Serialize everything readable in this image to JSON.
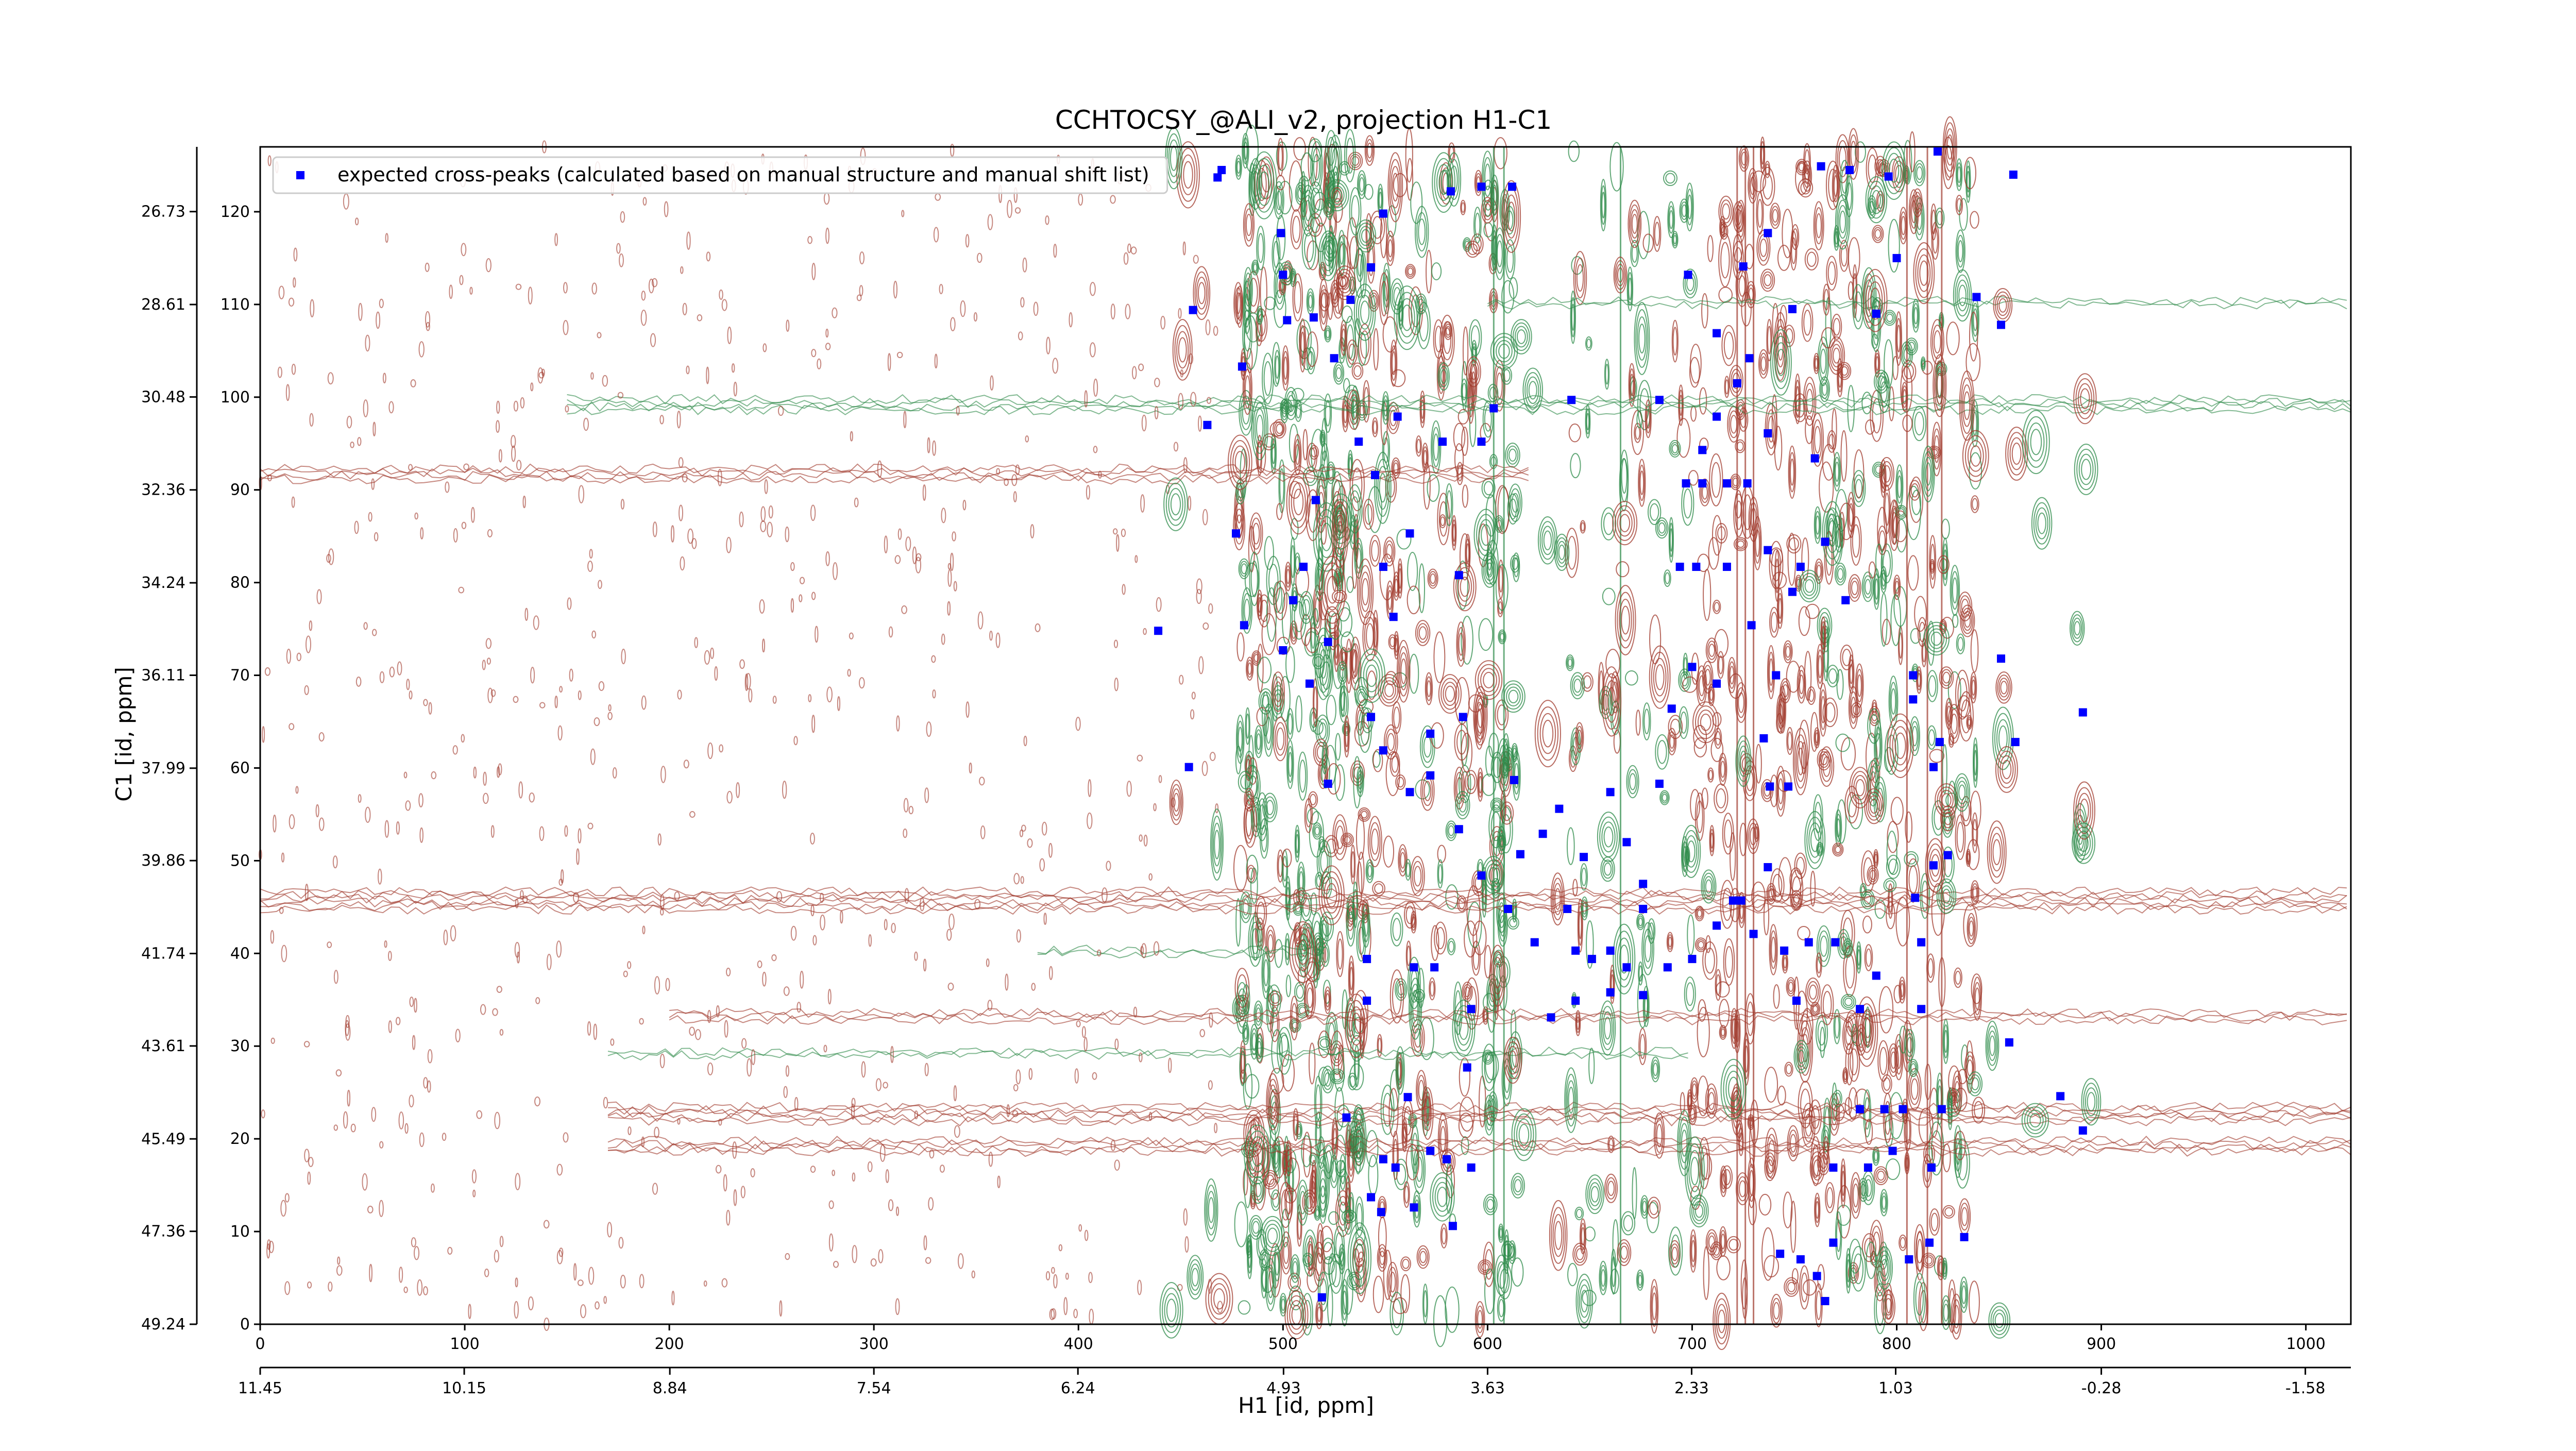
{
  "chart_data": {
    "type": "scatter",
    "title": "CCHTOCSY_@ALI_v2, projection H1-C1",
    "x2label": "H1 [id, ppm]",
    "y2label": "C1 [id, ppm]",
    "xlim": [
      0,
      1022
    ],
    "xticks": [
      0,
      100,
      200,
      300,
      400,
      500,
      600,
      700,
      800,
      900,
      1000
    ],
    "ylim": [
      0,
      127
    ],
    "yticks": [
      0,
      10,
      20,
      30,
      40,
      50,
      60,
      70,
      80,
      90,
      100,
      110,
      120
    ],
    "x2lim": [
      11.45,
      -1.87
    ],
    "x2ticks": [
      11.45,
      10.15,
      8.84,
      7.54,
      6.24,
      4.93,
      3.63,
      2.33,
      1.03,
      -0.28,
      -1.58
    ],
    "y2lim": [
      49.24,
      25.42
    ],
    "y2ticks": [
      49.24,
      47.36,
      45.49,
      43.61,
      41.74,
      39.86,
      37.99,
      36.11,
      34.24,
      32.36,
      30.48,
      28.61,
      26.73
    ],
    "legend": "upper left",
    "series": [
      {
        "name": "expected cross-peaks (calculated based on manual structure and manual shift list)",
        "color": "#0000ff",
        "x": [
          468,
          470,
          456,
          480,
          463,
          477,
          439,
          454,
          481,
          499,
          500,
          502,
          515,
          525,
          533,
          543,
          549,
          556,
          537,
          545,
          516,
          510,
          505,
          500,
          513,
          522,
          549,
          562,
          554,
          578,
          597,
          603,
          582,
          597,
          612,
          586,
          588,
          543,
          549,
          572,
          562,
          572,
          522,
          586,
          597,
          613,
          616,
          641,
          684,
          698,
          712,
          725,
          737,
          763,
          777,
          796,
          820,
          857,
          839,
          851,
          800,
          790,
          749,
          728,
          722,
          712,
          705,
          697,
          705,
          717,
          727,
          737,
          760,
          694,
          702,
          717,
          737,
          753,
          765,
          749,
          775,
          729,
          700,
          712,
          690,
          741,
          735,
          747,
          738,
          737,
          724,
          730,
          745,
          757,
          770,
          751,
          782,
          790,
          812,
          818,
          809,
          825,
          818,
          821,
          808,
          808,
          851,
          858,
          891,
          855,
          880,
          891,
          812,
          782,
          794,
          798,
          803,
          822,
          817,
          786,
          769,
          753,
          743,
          761,
          765,
          806,
          816,
          833,
          769,
          627,
          635,
          647,
          660,
          668,
          676,
          684,
          639,
          643,
          651,
          660,
          668,
          676,
          688,
          700,
          712,
          720,
          631,
          643,
          610,
          623,
          660,
          676,
          531,
          543,
          555,
          561,
          572,
          580,
          590,
          592,
          583,
          549,
          564,
          548,
          519,
          541,
          564,
          574,
          592,
          541
        ],
        "values": [
          123.7,
          124.5,
          109.4,
          103.3,
          97,
          85.3,
          74.8,
          60.1,
          75.4,
          117.7,
          113.2,
          108.3,
          108.6,
          104.2,
          110.5,
          114,
          119.8,
          97.9,
          95.2,
          91.6,
          88.9,
          81.7,
          78.1,
          72.7,
          69.1,
          73.6,
          81.7,
          85.3,
          76.3,
          95.2,
          95.2,
          98.8,
          122.2,
          122.7,
          122.7,
          80.8,
          65.5,
          65.5,
          61.9,
          63.7,
          57.4,
          59.2,
          58.3,
          53.4,
          48.4,
          58.7,
          50.7,
          99.7,
          99.7,
          113.2,
          106.9,
          114.1,
          117.7,
          124.9,
          124.5,
          123.8,
          126.5,
          124,
          110.8,
          107.8,
          115,
          109,
          109.5,
          104.2,
          101.5,
          97.9,
          94.3,
          90.7,
          90.7,
          90.7,
          90.7,
          96.1,
          93.4,
          81.7,
          81.7,
          81.7,
          83.5,
          81.7,
          84.4,
          79,
          78.1,
          75.4,
          70.9,
          69.1,
          66.4,
          70,
          63.2,
          58,
          58,
          49.3,
          45.7,
          42.1,
          40.3,
          41.2,
          41.2,
          34.9,
          34,
          37.6,
          41.2,
          49.5,
          46,
          50.6,
          60.1,
          62.8,
          67.4,
          70,
          71.8,
          62.8,
          66,
          30.4,
          24.6,
          20.9,
          34,
          23.2,
          23.2,
          18.7,
          23.2,
          23.2,
          16.9,
          16.9,
          16.9,
          7,
          7.6,
          5.2,
          2.5,
          7,
          8.8,
          9.4,
          8.8,
          52.9,
          55.6,
          50.4,
          57.4,
          52,
          47.5,
          58.3,
          44.8,
          40.3,
          39.4,
          40.3,
          38.5,
          44.8,
          38.5,
          39.4,
          43,
          45.7,
          33.1,
          34.9,
          44.8,
          41.2,
          35.8,
          35.5,
          22.3,
          13.7,
          16.9,
          24.5,
          18.7,
          17.8,
          27.7,
          16.9,
          10.6,
          17.8,
          12.6,
          12.1,
          2.9,
          39.4,
          38.5,
          38.5,
          34,
          34.9
        ]
      }
    ]
  }
}
